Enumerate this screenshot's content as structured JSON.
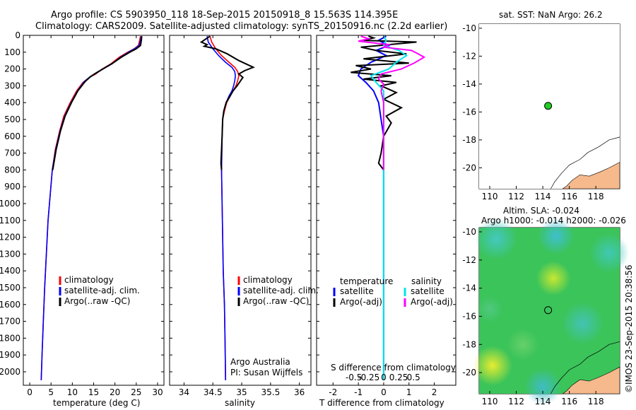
{
  "header": {
    "line1": "Argo profile: CS 5903950_118 18-Sep-2015 20150918_8 15.563S 114.395E",
    "line2": "Climatology: CARS2009. Satellite-adjusted climatology: synTS_20150916.nc (2.2d earlier)"
  },
  "colors": {
    "climatology": "#ff0000",
    "satellite": "#0000ff",
    "argo": "#000000",
    "sal_satellite": "#00e5ee",
    "sal_argo": "#ff00ff",
    "land": "#f5b98c",
    "marker": "#22cc22"
  },
  "depth_axis": {
    "ticks": [
      0,
      100,
      200,
      300,
      400,
      500,
      600,
      700,
      800,
      900,
      1000,
      1100,
      1200,
      1300,
      1400,
      1500,
      1600,
      1700,
      1800,
      1900,
      2000
    ],
    "ylim": [
      0,
      2080
    ]
  },
  "chart_data": [
    {
      "type": "line",
      "name": "temperature-panel",
      "xlabel": "temperature (deg C)",
      "xlim": [
        -1.5,
        31.5
      ],
      "xticks": [
        0,
        5,
        10,
        15,
        20,
        25,
        30
      ],
      "legend": [
        "climatology",
        "satellite-adj. clim.",
        "Argo(..raw -QC)"
      ],
      "series": [
        {
          "name": "climatology",
          "color": "#ff0000",
          "points": [
            [
              26.0,
              5
            ],
            [
              25.8,
              30
            ],
            [
              25.5,
              60
            ],
            [
              24.5,
              80
            ],
            [
              23.0,
              100
            ],
            [
              21.0,
              130
            ],
            [
              19.0,
              170
            ],
            [
              17.0,
              200
            ],
            [
              15.5,
              230
            ],
            [
              14.0,
              250
            ],
            [
              12.5,
              280
            ],
            [
              11.0,
              330
            ],
            [
              9.5,
              400
            ],
            [
              8.0,
              480
            ],
            [
              7.0,
              570
            ],
            [
              6.0,
              680
            ],
            [
              5.3,
              800
            ],
            [
              4.8,
              950
            ],
            [
              4.3,
              1100
            ],
            [
              3.9,
              1300
            ],
            [
              3.5,
              1500
            ],
            [
              3.2,
              1700
            ],
            [
              2.9,
              1900
            ],
            [
              2.7,
              2050
            ]
          ]
        },
        {
          "name": "satellite-adj. clim.",
          "color": "#0000ff",
          "points": [
            [
              26.2,
              5
            ],
            [
              26.0,
              30
            ],
            [
              25.7,
              60
            ],
            [
              24.6,
              80
            ],
            [
              23.2,
              100
            ],
            [
              21.3,
              130
            ],
            [
              19.3,
              170
            ],
            [
              17.2,
              200
            ],
            [
              15.6,
              225
            ],
            [
              14.2,
              245
            ],
            [
              12.8,
              275
            ],
            [
              11.2,
              330
            ],
            [
              9.7,
              400
            ],
            [
              8.2,
              480
            ],
            [
              7.1,
              570
            ],
            [
              6.1,
              680
            ],
            [
              5.3,
              800
            ],
            [
              4.8,
              950
            ],
            [
              4.3,
              1100
            ],
            [
              3.9,
              1300
            ],
            [
              3.5,
              1500
            ],
            [
              3.2,
              1700
            ],
            [
              2.9,
              1900
            ],
            [
              2.7,
              2050
            ]
          ]
        },
        {
          "name": "Argo(..raw -QC)",
          "color": "#000000",
          "points": [
            [
              26.3,
              5
            ],
            [
              26.2,
              30
            ],
            [
              26.0,
              60
            ],
            [
              25.0,
              80
            ],
            [
              23.5,
              100
            ],
            [
              21.5,
              130
            ],
            [
              19.5,
              165
            ],
            [
              17.5,
              195
            ],
            [
              15.5,
              225
            ],
            [
              14.3,
              245
            ],
            [
              13.0,
              275
            ],
            [
              11.3,
              330
            ],
            [
              9.8,
              400
            ],
            [
              8.3,
              480
            ],
            [
              7.2,
              570
            ],
            [
              6.2,
              680
            ],
            [
              5.4,
              800
            ]
          ]
        }
      ]
    },
    {
      "type": "line",
      "name": "salinity-panel",
      "xlabel": "salinity",
      "xlim": [
        33.75,
        36.2
      ],
      "xticks": [
        34,
        34.5,
        35,
        35.5,
        36
      ],
      "legend": [
        "climatology",
        "satellite-adj. clim.",
        "Argo(..raw -QC)"
      ],
      "annotation": [
        "Argo Australia",
        "PI: Susan Wijffels"
      ],
      "series": [
        {
          "name": "climatology",
          "color": "#ff0000",
          "points": [
            [
              34.45,
              5
            ],
            [
              34.48,
              40
            ],
            [
              34.55,
              80
            ],
            [
              34.65,
              120
            ],
            [
              34.78,
              160
            ],
            [
              34.88,
              190
            ],
            [
              34.93,
              215
            ],
            [
              34.95,
              240
            ],
            [
              34.93,
              270
            ],
            [
              34.9,
              300
            ],
            [
              34.85,
              330
            ],
            [
              34.8,
              360
            ],
            [
              34.74,
              400
            ],
            [
              34.7,
              450
            ],
            [
              34.67,
              500
            ],
            [
              34.66,
              600
            ],
            [
              34.65,
              800
            ],
            [
              34.66,
              1000
            ],
            [
              34.67,
              1200
            ],
            [
              34.68,
              1400
            ],
            [
              34.7,
              1600
            ],
            [
              34.71,
              1800
            ],
            [
              34.72,
              2050
            ]
          ]
        },
        {
          "name": "satellite-adj. clim.",
          "color": "#0000ff",
          "points": [
            [
              34.4,
              5
            ],
            [
              34.42,
              40
            ],
            [
              34.5,
              80
            ],
            [
              34.6,
              120
            ],
            [
              34.72,
              160
            ],
            [
              34.83,
              190
            ],
            [
              34.88,
              215
            ],
            [
              34.89,
              240
            ],
            [
              34.88,
              270
            ],
            [
              34.86,
              300
            ],
            [
              34.83,
              330
            ],
            [
              34.78,
              360
            ],
            [
              34.73,
              400
            ],
            [
              34.69,
              450
            ],
            [
              34.67,
              500
            ],
            [
              34.66,
              600
            ],
            [
              34.65,
              800
            ],
            [
              34.66,
              1000
            ],
            [
              34.67,
              1200
            ],
            [
              34.68,
              1400
            ],
            [
              34.7,
              1600
            ],
            [
              34.71,
              1800
            ],
            [
              34.72,
              2050
            ]
          ]
        },
        {
          "name": "Argo(..raw -QC)",
          "color": "#000000",
          "points": [
            [
              34.45,
              5
            ],
            [
              34.3,
              40
            ],
            [
              34.4,
              55
            ],
            [
              34.35,
              65
            ],
            [
              34.55,
              80
            ],
            [
              34.75,
              110
            ],
            [
              34.95,
              150
            ],
            [
              35.2,
              190
            ],
            [
              35.05,
              210
            ],
            [
              34.95,
              230
            ],
            [
              35.02,
              250
            ],
            [
              34.98,
              270
            ],
            [
              34.92,
              300
            ],
            [
              34.85,
              330
            ],
            [
              34.8,
              360
            ],
            [
              34.73,
              400
            ],
            [
              34.69,
              450
            ],
            [
              34.67,
              500
            ],
            [
              34.66,
              600
            ],
            [
              34.64,
              760
            ],
            [
              34.65,
              800
            ]
          ]
        }
      ]
    },
    {
      "type": "line",
      "name": "difference-panel",
      "xlabel": "T difference from climatology",
      "top_label": "S difference from climatology",
      "xlim": [
        -2.65,
        2.85
      ],
      "xticks_bottom": [
        -2,
        -1,
        0,
        1,
        2
      ],
      "xticks_top": [
        "-0.5",
        "-0.25",
        "0",
        "0.25",
        "0.5"
      ],
      "legend_temperature": [
        "temperature",
        "satellite",
        "Argo(-adj)"
      ],
      "legend_salinity": [
        "salinity",
        "satellite",
        "Argo(-adj)"
      ],
      "series": [
        {
          "name": "satellite",
          "group": "temperature",
          "color": "#0000ff",
          "points": [
            [
              0.1,
              5
            ],
            [
              -0.2,
              30
            ],
            [
              0.2,
              60
            ],
            [
              -0.3,
              90
            ],
            [
              0.1,
              120
            ],
            [
              -0.5,
              160
            ],
            [
              -0.9,
              200
            ],
            [
              -1.0,
              240
            ],
            [
              -0.7,
              280
            ],
            [
              -0.4,
              330
            ],
            [
              -0.2,
              400
            ],
            [
              -0.1,
              500
            ],
            [
              0.0,
              600
            ],
            [
              0.0,
              800
            ],
            [
              0.0,
              1000
            ],
            [
              0.0,
              1500
            ],
            [
              0.0,
              2050
            ]
          ]
        },
        {
          "name": "Argo(-adj)",
          "group": "temperature",
          "color": "#000000",
          "points": [
            [
              -0.6,
              5
            ],
            [
              -0.4,
              15
            ],
            [
              -0.8,
              30
            ],
            [
              1.3,
              40
            ],
            [
              0.2,
              55
            ],
            [
              -0.9,
              70
            ],
            [
              -0.3,
              90
            ],
            [
              0.9,
              110
            ],
            [
              -0.8,
              140
            ],
            [
              1.0,
              165
            ],
            [
              -1.1,
              180
            ],
            [
              -0.5,
              200
            ],
            [
              -1.3,
              220
            ],
            [
              0.3,
              240
            ],
            [
              -0.8,
              260
            ],
            [
              0.5,
              280
            ],
            [
              -0.1,
              300
            ],
            [
              0.5,
              340
            ],
            [
              0.0,
              380
            ],
            [
              0.7,
              430
            ],
            [
              0.1,
              480
            ],
            [
              0.3,
              520
            ],
            [
              0.0,
              600
            ],
            [
              -0.1,
              700
            ],
            [
              -0.2,
              760
            ],
            [
              0.0,
              800
            ]
          ]
        },
        {
          "name": "satellite",
          "group": "salinity",
          "color": "#00e5ee",
          "points": [
            [
              0.0,
              5
            ],
            [
              0.1,
              30
            ],
            [
              0.0,
              60
            ],
            [
              0.6,
              90
            ],
            [
              0.9,
              120
            ],
            [
              0.5,
              160
            ],
            [
              0.2,
              200
            ],
            [
              -0.5,
              240
            ],
            [
              -0.3,
              280
            ],
            [
              0.0,
              330
            ],
            [
              0.0,
              400
            ],
            [
              0.0,
              600
            ],
            [
              0.0,
              1000
            ],
            [
              0.0,
              2050
            ]
          ]
        },
        {
          "name": "Argo(-adj)",
          "group": "salinity",
          "color": "#ff00ff",
          "points": [
            [
              -0.9,
              5
            ],
            [
              -0.6,
              20
            ],
            [
              -1.0,
              35
            ],
            [
              0.2,
              55
            ],
            [
              0.0,
              70
            ],
            [
              1.1,
              90
            ],
            [
              1.3,
              105
            ],
            [
              1.6,
              130
            ],
            [
              1.2,
              165
            ],
            [
              0.7,
              200
            ],
            [
              -0.1,
              230
            ],
            [
              -0.2,
              260
            ],
            [
              0.0,
              290
            ],
            [
              -0.1,
              330
            ],
            [
              0.0,
              400
            ],
            [
              0.0,
              500
            ],
            [
              0.0,
              600
            ],
            [
              0.0,
              700
            ],
            [
              0.0,
              800
            ]
          ]
        }
      ]
    },
    {
      "type": "scatter",
      "name": "sst-map",
      "title": "sat. SST: NaN Argo: 26.2",
      "xlim": [
        109.2,
        119.8
      ],
      "ylim": [
        -21.5,
        -9.7
      ],
      "xticks": [
        110,
        112,
        114,
        116,
        118
      ],
      "yticks": [
        -10,
        -12,
        -14,
        -16,
        -18,
        -20
      ],
      "points": [
        [
          114.4,
          -15.56
        ]
      ]
    },
    {
      "type": "heatmap",
      "name": "sla-map",
      "title_lines": [
        "Altim. SLA: -0.024",
        "Argo h1000: -0.014 h2000: -0.026"
      ],
      "xlim": [
        109.2,
        119.8
      ],
      "ylim": [
        -21.5,
        -9.7
      ],
      "xticks": [
        110,
        112,
        114,
        116,
        118
      ],
      "yticks": [
        -10,
        -12,
        -14,
        -16,
        -18,
        -20
      ],
      "points": [
        [
          114.4,
          -15.56
        ]
      ]
    }
  ],
  "footer": {
    "credit": "©IMOS 23-Sep-2015 20:38:56"
  }
}
